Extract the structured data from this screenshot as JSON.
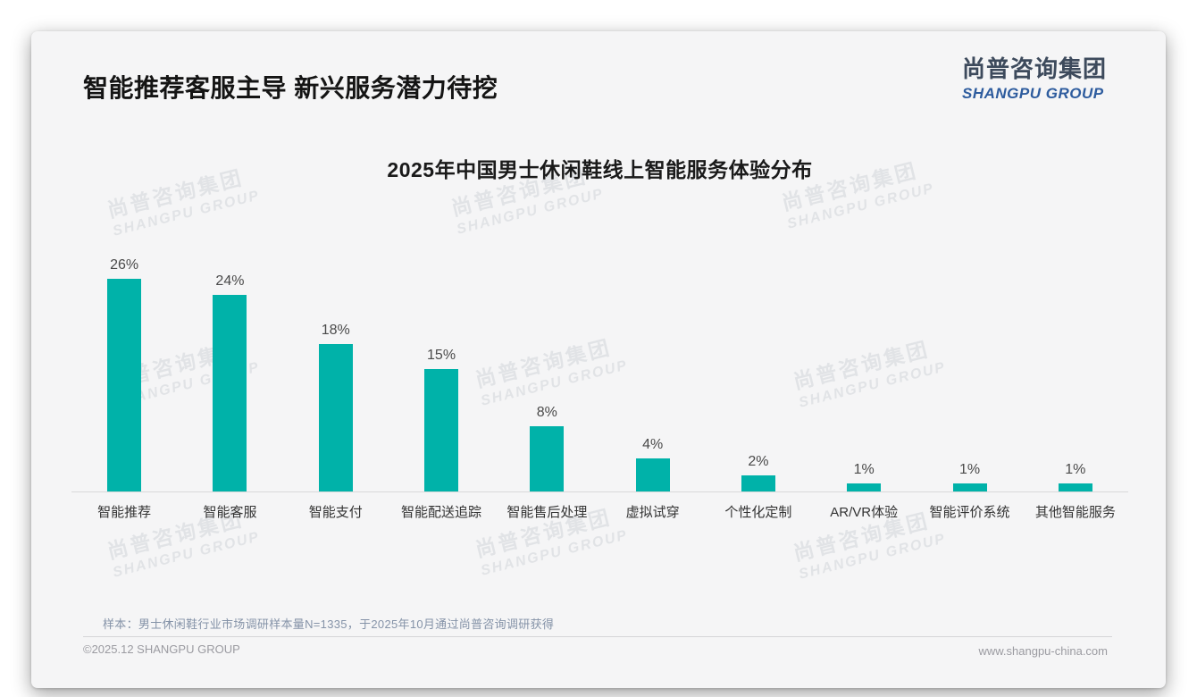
{
  "header": {
    "title": "智能推荐客服主导 新兴服务潜力待挖"
  },
  "logo": {
    "chinese": "尚普咨询集团",
    "english": "SHANGPU GROUP",
    "chinese_color": "#3d4a5c",
    "english_color": "#2e5c9e"
  },
  "watermark": {
    "chinese": "尚普咨询集团",
    "english": "SHANGPU GROUP"
  },
  "chart_data": {
    "type": "bar",
    "title": "2025年中国男士休闲鞋线上智能服务体验分布",
    "categories": [
      "智能推荐",
      "智能客服",
      "智能支付",
      "智能配送追踪",
      "智能售后处理",
      "虚拟试穿",
      "个性化定制",
      "AR/VR体验",
      "智能评价系统",
      "其他智能服务"
    ],
    "values": [
      26,
      24,
      18,
      15,
      8,
      4,
      2,
      1,
      1,
      1
    ],
    "value_labels": [
      "26%",
      "24%",
      "18%",
      "15%",
      "8%",
      "4%",
      "2%",
      "1%",
      "1%",
      "1%"
    ],
    "unit": "%",
    "bar_color": "#00b2a9",
    "xlabel": "",
    "ylabel": "",
    "ylim": [
      0,
      30
    ],
    "grid": false,
    "legend": "none"
  },
  "footnote": "样本：男士休闲鞋行业市场调研样本量N=1335，于2025年10月通过尚普咨询调研获得",
  "footer": {
    "copyright": "©2025.12 SHANGPU GROUP",
    "website": "www.shangpu-china.com"
  }
}
